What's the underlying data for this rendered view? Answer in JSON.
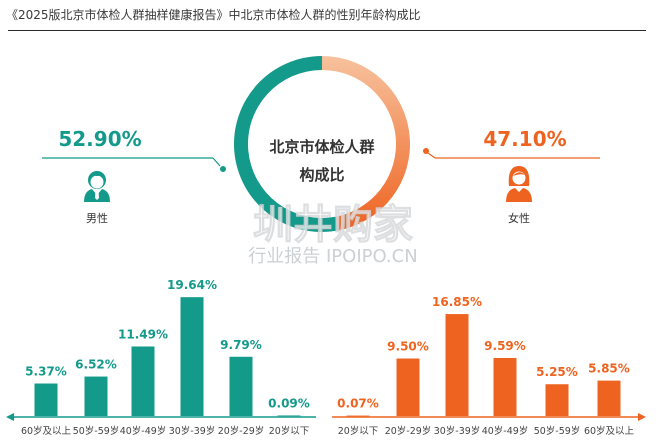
{
  "header": {
    "title": "《2025版北京市体检人群抽样健康报告》中北京市体检人群的性别年龄构成比"
  },
  "colors": {
    "male": "#139a8a",
    "female": "#ee6320",
    "female_light": "#f7c29e"
  },
  "donut": {
    "center_line1": "北京市体检人群",
    "center_line2": "构成比"
  },
  "watermark": {
    "line1": "圳井购家",
    "line2": "行业报告 IPOIPO.CN"
  },
  "chart_data": [
    {
      "type": "pie",
      "title": "",
      "categories": [
        "男性",
        "女性"
      ],
      "values": [
        52.9,
        47.1
      ],
      "labels": [
        "52.90%",
        "47.10%"
      ]
    },
    {
      "type": "bar",
      "title": "",
      "series_name": "男性",
      "categories": [
        "60岁及以上",
        "50岁-59岁",
        "40岁-49岁",
        "30岁-39岁",
        "20岁-29岁",
        "20岁以下"
      ],
      "values": [
        5.37,
        6.52,
        11.49,
        19.64,
        9.79,
        0.09
      ],
      "labels": [
        "5.37%",
        "6.52%",
        "11.49%",
        "19.64%",
        "9.79%",
        "0.09%"
      ],
      "ylim": [
        0,
        20
      ]
    },
    {
      "type": "bar",
      "title": "",
      "series_name": "女性",
      "categories": [
        "20岁以下",
        "20岁-29岁",
        "30岁-39岁",
        "40岁-49岁",
        "50岁-59岁",
        "60岁及以上"
      ],
      "values": [
        0.07,
        9.5,
        16.85,
        9.59,
        5.25,
        5.85
      ],
      "labels": [
        "0.07%",
        "9.50%",
        "16.85%",
        "9.59%",
        "5.25%",
        "5.85%"
      ],
      "ylim": [
        0,
        20
      ]
    }
  ]
}
